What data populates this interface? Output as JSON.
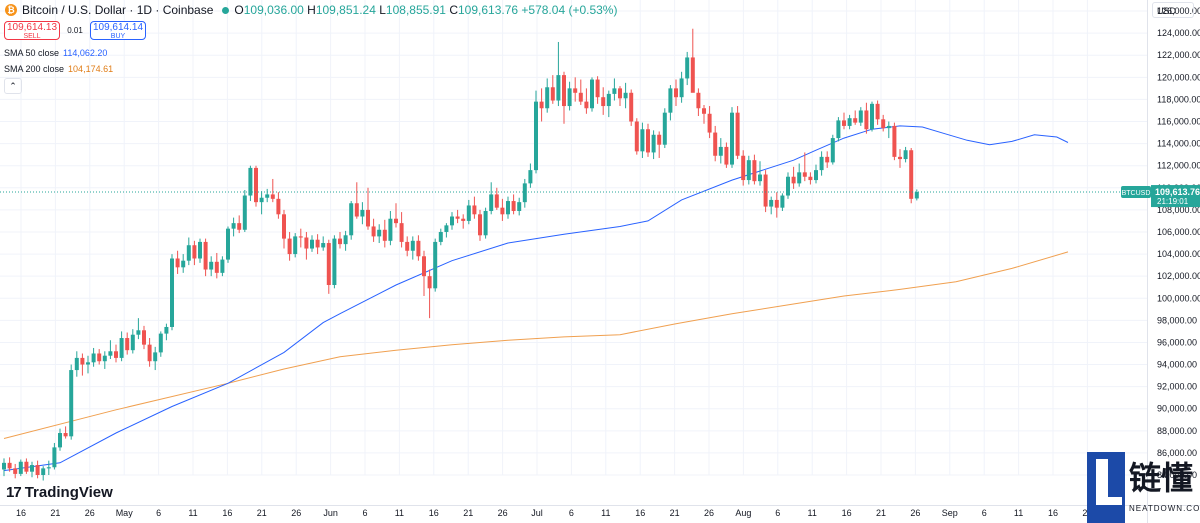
{
  "header": {
    "coin_symbol": "₿",
    "title": "Bitcoin / U.S. Dollar · 1D · Coinbase",
    "ohlc": [
      {
        "label": "O",
        "value": "109,036.00"
      },
      {
        "label": "H",
        "value": "109,851.24"
      },
      {
        "label": "L",
        "value": "108,855.91"
      },
      {
        "label": "C",
        "value": "109,613.76"
      }
    ],
    "change": "+578.04 (+0.53%)"
  },
  "trade": {
    "sell_price": "109,614.13",
    "sell_label": "SELL",
    "spread": "0.01",
    "buy_price": "109,614.14",
    "buy_label": "BUY"
  },
  "indicators": {
    "sma50_label": "SMA 50 close",
    "sma50_value": "114,062.20",
    "sma200_label": "SMA 200 close",
    "sma200_value": "104,174.61"
  },
  "collapse_symbol": "⌃",
  "currency": "USD",
  "brand": {
    "mark": "17",
    "name": "TradingView"
  },
  "watermark": {
    "cn": "链懂",
    "en": "NEATDOWN.COM"
  },
  "colors": {
    "up": "#26a69a",
    "down": "#ef5350",
    "sma50": "#2962ff",
    "sma200": "#f0a050",
    "price_tag": "#26a69a"
  },
  "chart_data": {
    "type": "candlestick",
    "ylim": [
      84000,
      127000
    ],
    "y_ticks": [
      "84,000.00",
      "86,000.00",
      "88,000.00",
      "90,000.00",
      "92,000.00",
      "94,000.00",
      "96,000.00",
      "98,000.00",
      "100,000.00",
      "102,000.00",
      "104,000.00",
      "106,000.00",
      "108,000.00",
      "110,000.00",
      "112,000.00",
      "114,000.00",
      "116,000.00",
      "118,000.00",
      "120,000.00",
      "122,000.00",
      "124,000.00",
      "126,000.00"
    ],
    "x_ticks": [
      "16",
      "21",
      "26",
      "May",
      "6",
      "11",
      "16",
      "21",
      "26",
      "Jun",
      "6",
      "11",
      "16",
      "21",
      "26",
      "Jul",
      "6",
      "11",
      "16",
      "21",
      "26",
      "Aug",
      "6",
      "11",
      "16",
      "21",
      "26",
      "Sep",
      "6",
      "11",
      "16",
      "21"
    ],
    "last_price": {
      "symbol": "BTCUSD",
      "price": "109,613.76",
      "countdown": "21:19:01",
      "value": 109613.76
    },
    "candles": [
      [
        84500,
        85500,
        83900,
        85100
      ],
      [
        85100,
        85600,
        84300,
        84600
      ],
      [
        84600,
        85000,
        83700,
        84100
      ],
      [
        84100,
        85400,
        83900,
        85200
      ],
      [
        85200,
        85500,
        84100,
        84300
      ],
      [
        84300,
        85200,
        83800,
        84900
      ],
      [
        84900,
        85300,
        83700,
        84000
      ],
      [
        84000,
        84800,
        83500,
        84600
      ],
      [
        84600,
        85300,
        84000,
        84700
      ],
      [
        84700,
        86900,
        84500,
        86500
      ],
      [
        86500,
        88200,
        86200,
        87800
      ],
      [
        87800,
        88400,
        87300,
        87500
      ],
      [
        87500,
        94000,
        87200,
        93500
      ],
      [
        93500,
        95200,
        92900,
        94600
      ],
      [
        94600,
        95000,
        93000,
        94000
      ],
      [
        94000,
        94800,
        93200,
        94200
      ],
      [
        94200,
        95500,
        93800,
        95000
      ],
      [
        95000,
        95400,
        94000,
        94300
      ],
      [
        94300,
        95200,
        93600,
        94800
      ],
      [
        94800,
        96200,
        94500,
        95200
      ],
      [
        95200,
        95800,
        94200,
        94600
      ],
      [
        94600,
        97000,
        94300,
        96400
      ],
      [
        96400,
        96900,
        94900,
        95300
      ],
      [
        95300,
        97200,
        95000,
        96700
      ],
      [
        96700,
        98200,
        96300,
        97100
      ],
      [
        97100,
        97500,
        95400,
        95800
      ],
      [
        95800,
        96400,
        93800,
        94300
      ],
      [
        94300,
        95600,
        93500,
        95100
      ],
      [
        95100,
        97000,
        94700,
        96800
      ],
      [
        96800,
        97700,
        96200,
        97400
      ],
      [
        97400,
        104000,
        97100,
        103600
      ],
      [
        103600,
        104300,
        102200,
        102800
      ],
      [
        102800,
        104000,
        102300,
        103400
      ],
      [
        103400,
        105500,
        103000,
        104800
      ],
      [
        104800,
        105200,
        103000,
        103600
      ],
      [
        103600,
        105400,
        103200,
        105100
      ],
      [
        105100,
        105400,
        102000,
        102600
      ],
      [
        102600,
        103800,
        102000,
        103300
      ],
      [
        103300,
        104100,
        101800,
        102300
      ],
      [
        102300,
        103800,
        102000,
        103500
      ],
      [
        103500,
        106500,
        103200,
        106300
      ],
      [
        106300,
        107300,
        105600,
        106800
      ],
      [
        106800,
        107500,
        105900,
        106200
      ],
      [
        106200,
        109800,
        106000,
        109300
      ],
      [
        109300,
        112000,
        108800,
        111800
      ],
      [
        111800,
        112000,
        108300,
        108700
      ],
      [
        108700,
        109700,
        107600,
        109100
      ],
      [
        109100,
        109900,
        108700,
        109400
      ],
      [
        109400,
        110800,
        108700,
        109000
      ],
      [
        109000,
        109600,
        107200,
        107600
      ],
      [
        107600,
        108000,
        104500,
        105400
      ],
      [
        105400,
        106000,
        103400,
        104000
      ],
      [
        104000,
        105900,
        103700,
        105600
      ],
      [
        105600,
        106300,
        104600,
        105500
      ],
      [
        105500,
        106000,
        103500,
        104500
      ],
      [
        104500,
        105700,
        104200,
        105300
      ],
      [
        105300,
        105800,
        104000,
        104600
      ],
      [
        104600,
        105600,
        104300,
        105000
      ],
      [
        105000,
        105300,
        100400,
        101200
      ],
      [
        101200,
        105700,
        100900,
        105400
      ],
      [
        105400,
        106000,
        104500,
        104900
      ],
      [
        104900,
        106100,
        104300,
        105700
      ],
      [
        105700,
        108800,
        105300,
        108600
      ],
      [
        108600,
        110500,
        107200,
        107400
      ],
      [
        107400,
        108700,
        106700,
        108000
      ],
      [
        108000,
        110000,
        106200,
        106500
      ],
      [
        106500,
        107200,
        105100,
        105600
      ],
      [
        105600,
        106700,
        105000,
        106200
      ],
      [
        106200,
        107100,
        104600,
        105200
      ],
      [
        105200,
        107900,
        104800,
        107200
      ],
      [
        107200,
        108600,
        106400,
        106800
      ],
      [
        106800,
        107800,
        104600,
        105100
      ],
      [
        105100,
        105600,
        103800,
        104300
      ],
      [
        104300,
        105600,
        103500,
        105200
      ],
      [
        105200,
        105700,
        103400,
        103800
      ],
      [
        103800,
        104300,
        100200,
        102000
      ],
      [
        102000,
        102600,
        98200,
        100900
      ],
      [
        100900,
        105400,
        100600,
        105100
      ],
      [
        105100,
        106300,
        104800,
        106000
      ],
      [
        106000,
        106800,
        105500,
        106600
      ],
      [
        106600,
        107800,
        106200,
        107400
      ],
      [
        107400,
        108000,
        106800,
        107200
      ],
      [
        107200,
        107600,
        106300,
        107000
      ],
      [
        107000,
        108900,
        106700,
        108400
      ],
      [
        108400,
        109200,
        107200,
        107600
      ],
      [
        107600,
        108000,
        105200,
        105700
      ],
      [
        105700,
        108200,
        105400,
        107900
      ],
      [
        107900,
        110500,
        107600,
        109400
      ],
      [
        109400,
        110000,
        108000,
        108200
      ],
      [
        108200,
        109000,
        107000,
        107600
      ],
      [
        107600,
        109200,
        107200,
        108800
      ],
      [
        108800,
        109400,
        107600,
        107900
      ],
      [
        107900,
        109100,
        107500,
        108700
      ],
      [
        108700,
        110800,
        108200,
        110400
      ],
      [
        110400,
        112200,
        110000,
        111600
      ],
      [
        111600,
        118800,
        111300,
        117800
      ],
      [
        117800,
        119000,
        116000,
        117200
      ],
      [
        117200,
        119900,
        116800,
        119100
      ],
      [
        119100,
        120200,
        117600,
        117900
      ],
      [
        117900,
        123200,
        117400,
        120200
      ],
      [
        120200,
        120500,
        115800,
        117400
      ],
      [
        117400,
        119600,
        117000,
        119000
      ],
      [
        119000,
        120000,
        117800,
        118600
      ],
      [
        118600,
        119800,
        117500,
        117800
      ],
      [
        117800,
        119000,
        116700,
        117200
      ],
      [
        117200,
        120000,
        116900,
        119800
      ],
      [
        119800,
        120100,
        117600,
        118200
      ],
      [
        118200,
        119100,
        116600,
        117400
      ],
      [
        117400,
        118800,
        116400,
        118500
      ],
      [
        118500,
        119900,
        117900,
        119000
      ],
      [
        119000,
        119200,
        117400,
        118100
      ],
      [
        118100,
        119500,
        117200,
        118600
      ],
      [
        118600,
        118900,
        115600,
        116000
      ],
      [
        116000,
        116300,
        113000,
        113300
      ],
      [
        113300,
        115900,
        112700,
        115300
      ],
      [
        115300,
        115800,
        112800,
        113200
      ],
      [
        113200,
        115200,
        112600,
        114800
      ],
      [
        114800,
        115100,
        112700,
        113900
      ],
      [
        113900,
        117200,
        113600,
        116800
      ],
      [
        116800,
        119300,
        116100,
        119000
      ],
      [
        119000,
        119800,
        117400,
        118200
      ],
      [
        118200,
        120500,
        117700,
        119900
      ],
      [
        119900,
        122300,
        119300,
        121800
      ],
      [
        121800,
        124400,
        118800,
        118600
      ],
      [
        118600,
        119000,
        116500,
        117200
      ],
      [
        117200,
        117500,
        115800,
        116700
      ],
      [
        116700,
        117400,
        114500,
        115000
      ],
      [
        115000,
        115600,
        112400,
        112900
      ],
      [
        112900,
        114500,
        112200,
        113700
      ],
      [
        113700,
        114100,
        111800,
        112100
      ],
      [
        112100,
        117300,
        111800,
        116800
      ],
      [
        116800,
        117400,
        112600,
        112900
      ],
      [
        112900,
        113400,
        110200,
        110700
      ],
      [
        110700,
        112900,
        110300,
        112500
      ],
      [
        112500,
        113000,
        110300,
        110600
      ],
      [
        110600,
        112400,
        110200,
        111200
      ],
      [
        111200,
        111600,
        107800,
        108300
      ],
      [
        108300,
        109200,
        107600,
        108900
      ],
      [
        108900,
        109600,
        107300,
        108200
      ],
      [
        108200,
        109500,
        107900,
        109300
      ],
      [
        109300,
        111400,
        109000,
        111000
      ],
      [
        111000,
        111900,
        109900,
        110400
      ],
      [
        110400,
        112200,
        110100,
        111400
      ],
      [
        111400,
        113200,
        110600,
        111000
      ],
      [
        111000,
        111400,
        110300,
        110700
      ],
      [
        110700,
        112100,
        110400,
        111600
      ],
      [
        111600,
        113300,
        111100,
        112800
      ],
      [
        112800,
        113300,
        111800,
        112300
      ],
      [
        112300,
        114800,
        112100,
        114500
      ],
      [
        114500,
        116400,
        114200,
        116100
      ],
      [
        116100,
        116800,
        115300,
        115600
      ],
      [
        115600,
        116600,
        115300,
        116300
      ],
      [
        116300,
        117000,
        115700,
        115900
      ],
      [
        115900,
        117300,
        115600,
        117000
      ],
      [
        117000,
        117700,
        114900,
        115300
      ],
      [
        115300,
        117800,
        115100,
        117600
      ],
      [
        117600,
        117900,
        115700,
        116200
      ],
      [
        116200,
        116600,
        115100,
        115400
      ],
      [
        115400,
        116000,
        114500,
        115600
      ],
      [
        115600,
        115900,
        112500,
        112800
      ],
      [
        112800,
        113500,
        111800,
        112600
      ],
      [
        112600,
        113700,
        112300,
        113400
      ],
      [
        113400,
        113600,
        108600,
        109000
      ],
      [
        109036,
        109851.24,
        108855.91,
        109613.76
      ]
    ],
    "sma50": [
      [
        0,
        84400
      ],
      [
        10,
        85100
      ],
      [
        20,
        87800
      ],
      [
        30,
        90200
      ],
      [
        40,
        92300
      ],
      [
        50,
        95100
      ],
      [
        57,
        97800
      ],
      [
        60,
        98600
      ],
      [
        70,
        101200
      ],
      [
        80,
        103400
      ],
      [
        90,
        105000
      ],
      [
        100,
        105800
      ],
      [
        110,
        106500
      ],
      [
        115,
        107000
      ],
      [
        121,
        108900
      ],
      [
        130,
        110700
      ],
      [
        141,
        112500
      ],
      [
        145,
        113400
      ],
      [
        150,
        114500
      ],
      [
        155,
        115300
      ],
      [
        160,
        115600
      ],
      [
        164,
        115500
      ],
      [
        168,
        114900
      ],
      [
        172,
        114300
      ],
      [
        176,
        113900
      ],
      [
        180,
        114200
      ],
      [
        184,
        114800
      ],
      [
        188,
        114600
      ],
      [
        190,
        114100
      ]
    ],
    "sma200": [
      [
        0,
        87300
      ],
      [
        20,
        89900
      ],
      [
        40,
        92300
      ],
      [
        50,
        93600
      ],
      [
        60,
        94700
      ],
      [
        70,
        95300
      ],
      [
        80,
        95800
      ],
      [
        90,
        96200
      ],
      [
        100,
        96500
      ],
      [
        110,
        96700
      ],
      [
        120,
        97700
      ],
      [
        130,
        98600
      ],
      [
        140,
        99400
      ],
      [
        150,
        100200
      ],
      [
        160,
        100800
      ],
      [
        170,
        101500
      ],
      [
        180,
        102700
      ],
      [
        190,
        104200
      ]
    ]
  }
}
